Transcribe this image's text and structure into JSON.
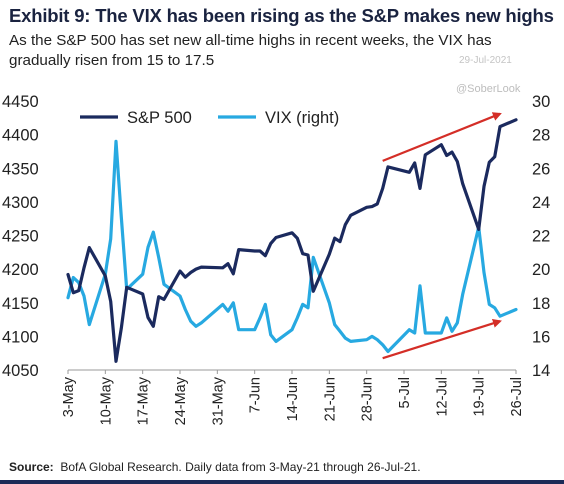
{
  "header": {
    "title": "Exhibit 9: The VIX has been rising as the S&P makes new highs",
    "subtitle": "As the S&P 500 has set new all-time highs in recent weeks, the VIX has gradually risen from 15 to 17.5"
  },
  "watermark": {
    "date": "29-Jul-2021",
    "handle": "@SoberLook"
  },
  "footer": {
    "source_label": "Source:",
    "source_text": "BofA Global Research.  Daily data from 3-May-21 through 26-Jul-21."
  },
  "colors": {
    "sp500": "#1b2a5e",
    "vix": "#27a9e1",
    "arrow": "#d42e27",
    "text": "#222222"
  },
  "chart_data": {
    "type": "line",
    "x": [
      "2021-05-03",
      "2021-05-04",
      "2021-05-05",
      "2021-05-06",
      "2021-05-07",
      "2021-05-10",
      "2021-05-11",
      "2021-05-12",
      "2021-05-13",
      "2021-05-14",
      "2021-05-17",
      "2021-05-18",
      "2021-05-19",
      "2021-05-20",
      "2021-05-21",
      "2021-05-24",
      "2021-05-25",
      "2021-05-26",
      "2021-05-27",
      "2021-05-28",
      "2021-06-01",
      "2021-06-02",
      "2021-06-03",
      "2021-06-04",
      "2021-06-07",
      "2021-06-08",
      "2021-06-09",
      "2021-06-10",
      "2021-06-11",
      "2021-06-14",
      "2021-06-15",
      "2021-06-16",
      "2021-06-17",
      "2021-06-18",
      "2021-06-21",
      "2021-06-22",
      "2021-06-23",
      "2021-06-24",
      "2021-06-25",
      "2021-06-28",
      "2021-06-29",
      "2021-06-30",
      "2021-07-01",
      "2021-07-02",
      "2021-07-06",
      "2021-07-07",
      "2021-07-08",
      "2021-07-09",
      "2021-07-12",
      "2021-07-13",
      "2021-07-14",
      "2021-07-15",
      "2021-07-16",
      "2021-07-19",
      "2021-07-20",
      "2021-07-21",
      "2021-07-22",
      "2021-07-23",
      "2021-07-26"
    ],
    "x_ticks": [
      "3-May",
      "10-May",
      "17-May",
      "24-May",
      "31-May",
      "7-Jun",
      "14-Jun",
      "21-Jun",
      "28-Jun",
      "5-Jul",
      "12-Jul",
      "19-Jul",
      "26-Jul"
    ],
    "series": [
      {
        "name": "S&P 500",
        "axis": "left",
        "values": [
          4192,
          4165,
          4168,
          4202,
          4232,
          4190,
          4152,
          4063,
          4112,
          4173,
          4163,
          4128,
          4115,
          4159,
          4155,
          4197,
          4188,
          4195,
          4200,
          4203,
          4202,
          4208,
          4193,
          4229,
          4227,
          4227,
          4220,
          4238,
          4247,
          4254,
          4246,
          4223,
          4221,
          4167,
          4222,
          4246,
          4241,
          4266,
          4280,
          4292,
          4293,
          4297,
          4320,
          4352,
          4344,
          4358,
          4320,
          4370,
          4385,
          4369,
          4374,
          4360,
          4327,
          4259,
          4323,
          4359,
          4367,
          4412,
          4422
        ]
      },
      {
        "name": "VIX (right)",
        "axis": "right",
        "values": [
          18.3,
          19.5,
          19.2,
          18.4,
          16.7,
          19.7,
          21.8,
          27.6,
          23.1,
          18.8,
          19.7,
          21.3,
          22.2,
          20.7,
          19.1,
          18.4,
          17.6,
          16.9,
          16.6,
          16.8,
          17.9,
          17.5,
          18.0,
          16.4,
          16.4,
          17.1,
          17.9,
          16.1,
          15.7,
          16.4,
          17.1,
          17.9,
          17.7,
          20.7,
          18.0,
          16.7,
          16.3,
          15.9,
          15.7,
          15.8,
          16.0,
          15.8,
          15.5,
          15.1,
          16.4,
          16.2,
          19.0,
          16.2,
          16.2,
          17.1,
          16.3,
          16.8,
          18.5,
          22.5,
          19.8,
          17.9,
          17.7,
          17.2,
          17.6
        ]
      }
    ],
    "y_left": {
      "ticks": [
        4050,
        4100,
        4150,
        4200,
        4250,
        4300,
        4350,
        4400,
        4450
      ],
      "ylim": [
        4050,
        4450
      ]
    },
    "y_right": {
      "ticks": [
        14,
        16,
        18,
        20,
        22,
        24,
        26,
        28,
        30
      ],
      "ylim": [
        14,
        30
      ]
    },
    "legend": {
      "placement": "top-left",
      "entries": [
        "S&P 500",
        "VIX (right)"
      ]
    },
    "grid": false,
    "annotations": [
      {
        "type": "arrow",
        "color": "red",
        "from": {
          "x": "2021-07-01",
          "y_left": 4352
        },
        "to": {
          "x": "2021-07-23",
          "y_left": 4422
        }
      },
      {
        "type": "arrow",
        "color": "red",
        "from": {
          "x": "2021-07-01",
          "y_right": 15.0
        },
        "to": {
          "x": "2021-07-23",
          "y_right": 17.2
        }
      }
    ]
  }
}
